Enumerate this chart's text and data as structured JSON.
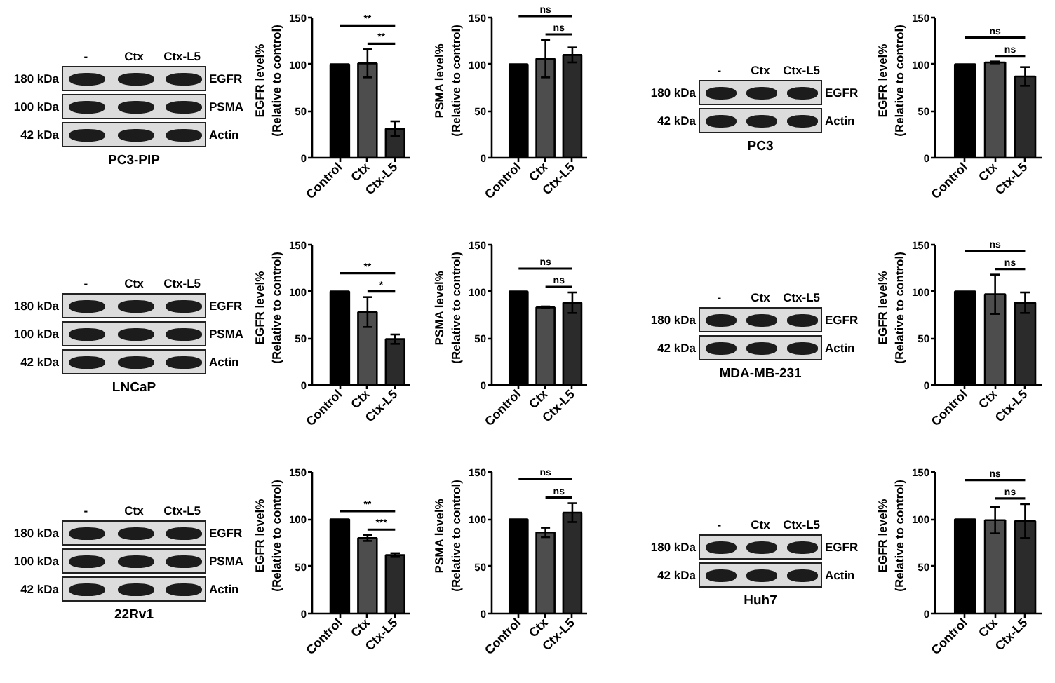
{
  "chart_data": [
    {
      "type": "other",
      "categories": [
        "-",
        "Ctx",
        "Ctx-L5"
      ],
      "y_categories": [
        "180 kDa",
        "100 kDa",
        "42 kDa"
      ],
      "y2_categories": [
        "EGFR",
        "PSMA",
        "Actin"
      ],
      "xlabel": "PC3-PIP"
    },
    {
      "type": "bar",
      "categories": [
        "Control",
        "Ctx",
        "Ctx-L5"
      ],
      "values": [
        100,
        101,
        31
      ],
      "errors": [
        null,
        15,
        8
      ],
      "colors": [
        "#000000",
        "#4d4d4d",
        "#2b2b2b"
      ],
      "ylabel": "EGFR level%\n(Relative to control)",
      "ylim": [
        0,
        150
      ],
      "yticks": [
        0,
        50,
        100,
        150
      ],
      "annotations": [
        "**",
        "**"
      ]
    },
    {
      "type": "bar",
      "categories": [
        "Control",
        "Ctx",
        "Ctx-L5"
      ],
      "values": [
        100,
        106,
        110
      ],
      "errors": [
        null,
        20,
        8
      ],
      "colors": [
        "#000000",
        "#4d4d4d",
        "#2b2b2b"
      ],
      "ylabel": "PSMA level%\n(Relative to control)",
      "ylim": [
        0,
        150
      ],
      "yticks": [
        0,
        50,
        100,
        150
      ],
      "annotations": [
        "ns",
        "ns"
      ]
    },
    {
      "type": "other",
      "categories": [
        "-",
        "Ctx",
        "Ctx-L5"
      ],
      "y_categories": [
        "180 kDa",
        "42 kDa"
      ],
      "y2_categories": [
        "EGFR",
        "Actin"
      ],
      "xlabel": "PC3"
    },
    {
      "type": "bar",
      "categories": [
        "Control",
        "Ctx",
        "Ctx-L5"
      ],
      "values": [
        100,
        102,
        87
      ],
      "errors": [
        null,
        1,
        10
      ],
      "colors": [
        "#000000",
        "#4d4d4d",
        "#2b2b2b"
      ],
      "ylabel": "EGFR level%\n(Relative to control)",
      "ylim": [
        0,
        150
      ],
      "yticks": [
        0,
        50,
        100,
        150
      ],
      "annotations": [
        "ns",
        "ns"
      ]
    },
    {
      "type": "other",
      "categories": [
        "-",
        "Ctx",
        "Ctx-L5"
      ],
      "y_categories": [
        "180 kDa",
        "100 kDa",
        "42 kDa"
      ],
      "y2_categories": [
        "EGFR",
        "PSMA",
        "Actin"
      ],
      "xlabel": "LNCaP"
    },
    {
      "type": "bar",
      "categories": [
        "Control",
        "Ctx",
        "Ctx-L5"
      ],
      "values": [
        100,
        78,
        49
      ],
      "errors": [
        null,
        16,
        5
      ],
      "colors": [
        "#000000",
        "#4d4d4d",
        "#2b2b2b"
      ],
      "ylabel": "EGFR level%\n(Relative to control)",
      "ylim": [
        0,
        150
      ],
      "yticks": [
        0,
        50,
        100,
        150
      ],
      "annotations": [
        "**",
        "*"
      ]
    },
    {
      "type": "bar",
      "categories": [
        "Control",
        "Ctx",
        "Ctx-L5"
      ],
      "values": [
        100,
        83,
        88
      ],
      "errors": [
        null,
        1,
        11
      ],
      "colors": [
        "#000000",
        "#4d4d4d",
        "#2b2b2b"
      ],
      "ylabel": "PSMA level%\n(Relative to control)",
      "ylim": [
        0,
        150
      ],
      "yticks": [
        0,
        50,
        100,
        150
      ],
      "annotations": [
        "ns",
        "ns"
      ]
    },
    {
      "type": "other",
      "categories": [
        "-",
        "Ctx",
        "Ctx-L5"
      ],
      "y_categories": [
        "180 kDa",
        "42 kDa"
      ],
      "y2_categories": [
        "EGFR",
        "Actin"
      ],
      "xlabel": "MDA-MB-231"
    },
    {
      "type": "bar",
      "categories": [
        "Control",
        "Ctx",
        "Ctx-L5"
      ],
      "values": [
        100,
        97,
        88
      ],
      "errors": [
        null,
        21,
        11
      ],
      "colors": [
        "#000000",
        "#4d4d4d",
        "#2b2b2b"
      ],
      "ylabel": "EGFR level%\n(Relative to control)",
      "ylim": [
        0,
        150
      ],
      "yticks": [
        0,
        50,
        100,
        150
      ],
      "annotations": [
        "ns",
        "ns"
      ]
    },
    {
      "type": "other",
      "categories": [
        "-",
        "Ctx",
        "Ctx-L5"
      ],
      "y_categories": [
        "180 kDa",
        "100 kDa",
        "42 kDa"
      ],
      "y2_categories": [
        "EGFR",
        "PSMA",
        "Actin"
      ],
      "xlabel": "22Rv1"
    },
    {
      "type": "bar",
      "categories": [
        "Control",
        "Ctx",
        "Ctx-L5"
      ],
      "values": [
        100,
        80,
        62
      ],
      "errors": [
        null,
        3,
        2
      ],
      "colors": [
        "#000000",
        "#4d4d4d",
        "#2b2b2b"
      ],
      "ylabel": "EGFR level%\n(Relative to control)",
      "ylim": [
        0,
        150
      ],
      "yticks": [
        0,
        50,
        100,
        150
      ],
      "annotations": [
        "**",
        "***"
      ]
    },
    {
      "type": "bar",
      "categories": [
        "Control",
        "Ctx",
        "Ctx-L5"
      ],
      "values": [
        100,
        86,
        107
      ],
      "errors": [
        null,
        5,
        10
      ],
      "colors": [
        "#000000",
        "#4d4d4d",
        "#2b2b2b"
      ],
      "ylabel": "PSMA level%\n(Relative to control)",
      "ylim": [
        0,
        150
      ],
      "yticks": [
        0,
        50,
        100,
        150
      ],
      "annotations": [
        "ns",
        "ns"
      ]
    },
    {
      "type": "other",
      "categories": [
        "-",
        "Ctx",
        "Ctx-L5"
      ],
      "y_categories": [
        "180 kDa",
        "42 kDa"
      ],
      "y2_categories": [
        "EGFR",
        "Actin"
      ],
      "xlabel": "Huh7"
    },
    {
      "type": "bar",
      "categories": [
        "Control",
        "Ctx",
        "Ctx-L5"
      ],
      "values": [
        100,
        99,
        98
      ],
      "errors": [
        null,
        14,
        18
      ],
      "colors": [
        "#000000",
        "#4d4d4d",
        "#2b2b2b"
      ],
      "ylabel": "EGFR level%\n(Relative to control)",
      "ylim": [
        0,
        150
      ],
      "yticks": [
        0,
        50,
        100,
        150
      ],
      "annotations": [
        "ns",
        "ns"
      ]
    }
  ]
}
